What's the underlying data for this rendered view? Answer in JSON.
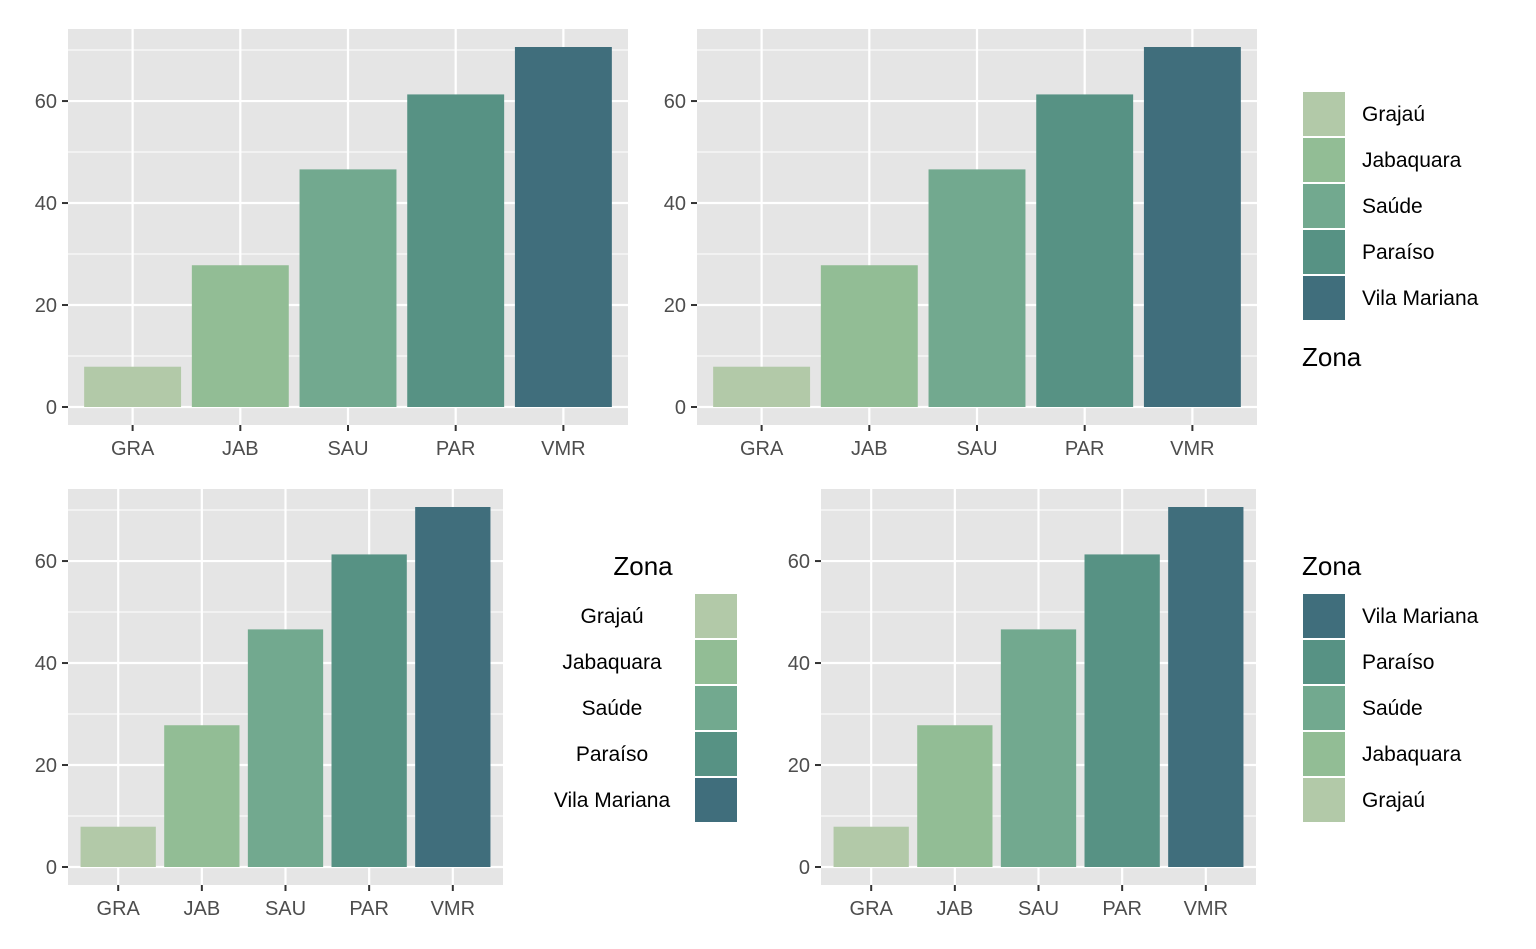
{
  "legend_title": "Zona",
  "zones": [
    {
      "code": "GRA",
      "name": "Grajaú",
      "color": "#b2c9a8"
    },
    {
      "code": "JAB",
      "name": "Jabaquara",
      "color": "#92bd95"
    },
    {
      "code": "SAU",
      "name": "Saúde",
      "color": "#72a98f"
    },
    {
      "code": "PAR",
      "name": "Paraíso",
      "color": "#579284"
    },
    {
      "code": "VMR",
      "name": "Vila Mariana",
      "color": "#406e7c"
    }
  ],
  "panel_bg": "#e5e5e5",
  "grid_color": "#ffffff",
  "chart_data": [
    {
      "type": "bar",
      "panel": "top-left",
      "categories": [
        "GRA",
        "JAB",
        "SAU",
        "PAR",
        "VMR"
      ],
      "values": [
        7.9,
        27.8,
        46.6,
        61.3,
        70.6
      ],
      "ylim": [
        0,
        70.6
      ],
      "yticks": [
        0,
        20,
        40,
        60
      ],
      "legend": null
    },
    {
      "type": "bar",
      "panel": "top-right",
      "categories": [
        "GRA",
        "JAB",
        "SAU",
        "PAR",
        "VMR"
      ],
      "values": [
        7.9,
        27.8,
        46.6,
        61.3,
        70.6
      ],
      "ylim": [
        0,
        70.6
      ],
      "yticks": [
        0,
        20,
        40,
        60
      ],
      "legend": {
        "position": "right",
        "title_position": "bottom",
        "label_side": "right",
        "order": "ascending"
      }
    },
    {
      "type": "bar",
      "panel": "bottom-left",
      "categories": [
        "GRA",
        "JAB",
        "SAU",
        "PAR",
        "VMR"
      ],
      "values": [
        7.9,
        27.8,
        46.6,
        61.3,
        70.6
      ],
      "ylim": [
        0,
        70.6
      ],
      "yticks": [
        0,
        20,
        40,
        60
      ],
      "legend": {
        "position": "right",
        "title_position": "top",
        "label_side": "left",
        "order": "ascending"
      }
    },
    {
      "type": "bar",
      "panel": "bottom-right",
      "categories": [
        "GRA",
        "JAB",
        "SAU",
        "PAR",
        "VMR"
      ],
      "values": [
        7.9,
        27.8,
        46.6,
        61.3,
        70.6
      ],
      "ylim": [
        0,
        70.6
      ],
      "yticks": [
        0,
        20,
        40,
        60
      ],
      "legend": {
        "position": "right",
        "title_position": "top",
        "label_side": "right",
        "order": "descending"
      }
    }
  ]
}
